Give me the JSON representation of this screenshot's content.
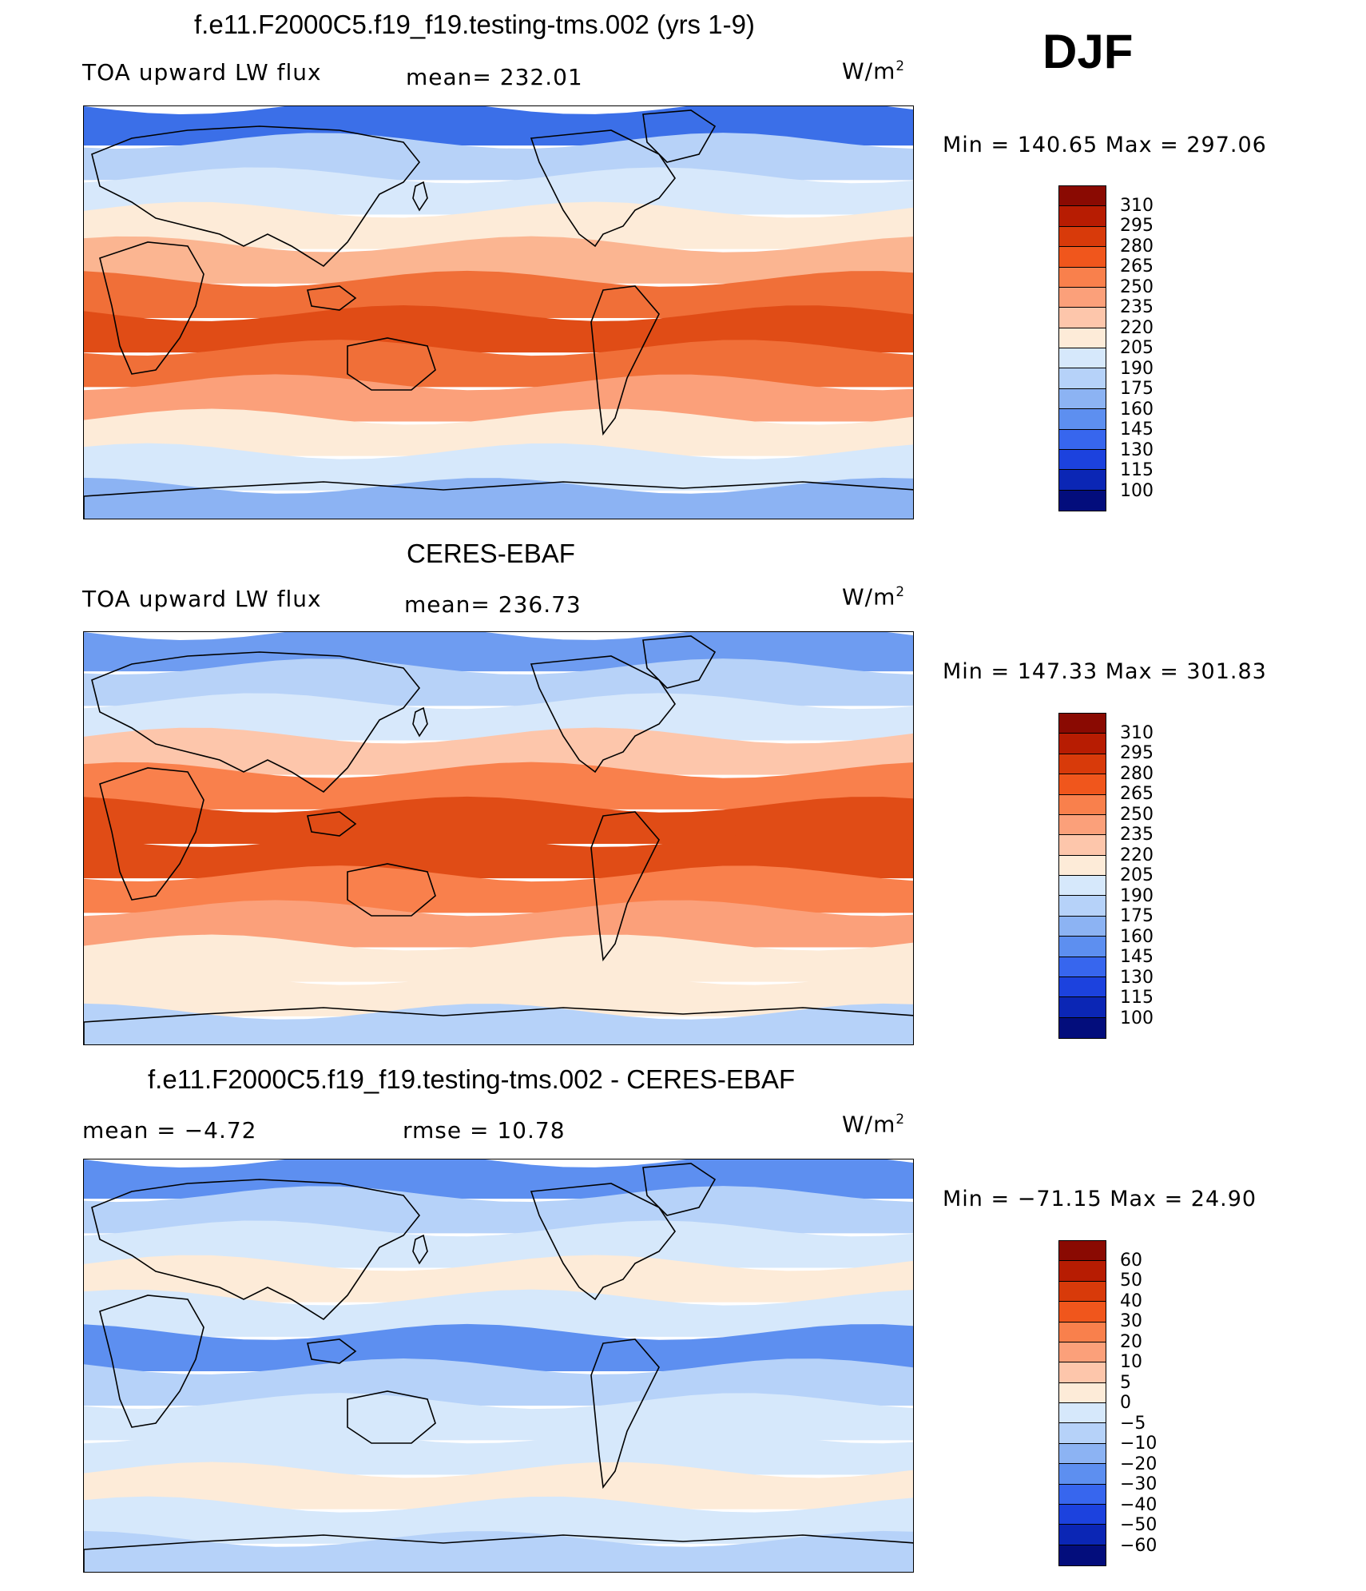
{
  "season": "DJF",
  "panels": [
    {
      "title": "f.e11.F2000C5.f19_f19.testing-tms.002 (yrs 1-9)",
      "left_label": "TOA upward LW flux",
      "center_label": "mean= 232.01",
      "units": "W/m",
      "units_sup": "2",
      "minmax": "Min  =  140.65  Max  =  297.06"
    },
    {
      "title": "CERES-EBAF",
      "left_label": "TOA upward LW flux",
      "center_label": "mean= 236.73",
      "units": "W/m",
      "units_sup": "2",
      "minmax": "Min  =  147.33  Max  =  301.83"
    },
    {
      "title": "f.e11.F2000C5.f19_f19.testing-tms.002 - CERES-EBAF",
      "left_label": "mean =   −4.72",
      "center_label": "rmse =   10.78",
      "units": "W/m",
      "units_sup": "2",
      "minmax": "Min  =  −71.15  Max  =   24.90"
    }
  ],
  "colorbars": {
    "absolute": {
      "labels": [
        "310",
        "295",
        "280",
        "265",
        "250",
        "235",
        "220",
        "205",
        "190",
        "175",
        "160",
        "145",
        "130",
        "115",
        "100"
      ],
      "colors": [
        "#8a0a02",
        "#b71c02",
        "#d83a0a",
        "#f0561c",
        "#f9804c",
        "#fba07a",
        "#fdc6ab",
        "#fdebd8",
        "#d6e8fb",
        "#b6d2f9",
        "#8cb3f3",
        "#5d8ff0",
        "#3766ee",
        "#1c42de",
        "#0b26b5",
        "#030d7c"
      ]
    },
    "difference": {
      "labels": [
        "60",
        "50",
        "40",
        "30",
        "20",
        "10",
        "5",
        "0",
        "−5",
        "−10",
        "−20",
        "−30",
        "−40",
        "−50",
        "−60"
      ],
      "colors": [
        "#8a0a02",
        "#b71c02",
        "#d83a0a",
        "#f0561c",
        "#f9804c",
        "#fba07a",
        "#fdc6ab",
        "#fdebd8",
        "#d6e8fb",
        "#b6d2f9",
        "#8cb3f3",
        "#5d8ff0",
        "#3766ee",
        "#1c42de",
        "#0b26b5",
        "#030d7c"
      ]
    }
  },
  "map_fields": {
    "model": {
      "bands": [
        "#3b6fe8",
        "#b7d2f8",
        "#d7e8fb",
        "#fdebd8",
        "#fbb591",
        "#f06f38",
        "#e04c16",
        "#f06f38",
        "#fba07a",
        "#fdebd8",
        "#d6e8fb",
        "#8cb3f3"
      ]
    },
    "obs": {
      "bands": [
        "#6e9cf1",
        "#b7d2f8",
        "#d7e8fb",
        "#fdc6ab",
        "#f9804c",
        "#e04c16",
        "#e04c16",
        "#f9804c",
        "#fba07a",
        "#fdebd8",
        "#fdebd8",
        "#b6d2f9"
      ]
    },
    "diff": {
      "bands": [
        "#5d8ff0",
        "#b6d2f9",
        "#d6e8fb",
        "#fdebd8",
        "#d6e8fb",
        "#5d8ff0",
        "#b6d2f9",
        "#d6e8fb",
        "#d6e8fb",
        "#fdebd8",
        "#d6e8fb",
        "#b6d2f9"
      ]
    }
  }
}
